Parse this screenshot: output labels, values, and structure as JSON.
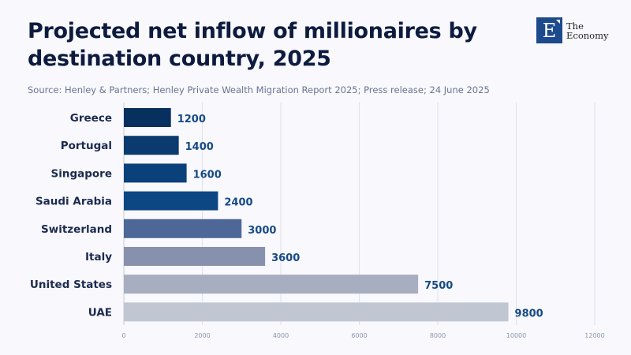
{
  "header": {
    "title": "Projected net inflow of millionaires by destination country, 2025",
    "source": "Source: Henley & Partners; Henley Private Wealth Migration Report 2025; Press release; 24 June 2025"
  },
  "logo": {
    "letter": "E",
    "line1": "The",
    "line2": "Economy"
  },
  "chart_data": {
    "type": "bar",
    "orientation": "horizontal",
    "title": "Projected net inflow of millionaires by destination country, 2025",
    "xlabel": "",
    "ylabel": "",
    "categories": [
      "Greece",
      "Portugal",
      "Singapore",
      "Saudi Arabia",
      "Switzerland",
      "Italy",
      "United States",
      "UAE"
    ],
    "values": [
      1200,
      1400,
      1600,
      2400,
      3000,
      3600,
      7500,
      9800
    ],
    "colors": [
      "#08305e",
      "#0a3a6e",
      "#0b417b",
      "#0c4784",
      "#4d6797",
      "#8791ad",
      "#a6aebf",
      "#c1c7d2"
    ],
    "xlim": [
      0,
      12000
    ],
    "xticks": [
      0,
      2000,
      4000,
      6000,
      8000,
      10000,
      12000
    ],
    "grid": true,
    "data_labels": true
  }
}
